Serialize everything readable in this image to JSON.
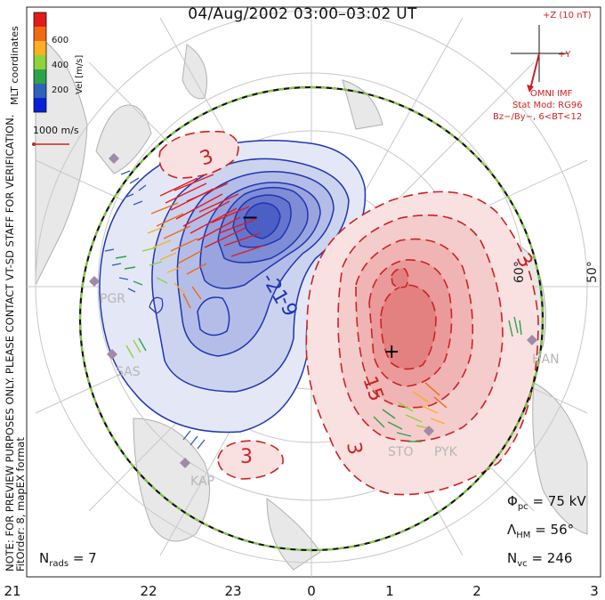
{
  "title": "04/Aug/2002 03:00–03:02 UT",
  "legend": {
    "coords": "MLT coordinates",
    "vel_label": "Vel [m/s]",
    "ticks": [
      "600",
      "400",
      "200"
    ],
    "colors": [
      "#e31a1c",
      "#f16913",
      "#fdae26",
      "#8dd33c",
      "#2ba34a",
      "#2f62b9",
      "#0b1fd6"
    ],
    "ref_vector": "1000 m/s"
  },
  "imf": {
    "z_label": "+Z (10 nT)",
    "y_label": "+Y",
    "source": "OMNI IMF",
    "stat_mod": "Stat Mod: RG96",
    "bin": "Bz−/By−, 6<BT<12"
  },
  "notice": {
    "line1": "NOTE: FOR PREVIEW PURPOSES ONLY. PLEASE CONTACT VT-SD STAFF FOR VERIFICATION.",
    "line2": "FitOrder: 8, mapEX format"
  },
  "stats": {
    "phi_symbol": "Φ",
    "phi_sub": "pc",
    "phi_value": "= 75 kV",
    "lambda_symbol": "Λ",
    "lambda_sub": "HM",
    "lambda_value": "= 56°",
    "nvc_symbol": "N",
    "nvc_sub": "vc",
    "nvc_value": "= 246",
    "nrads_symbol": "N",
    "nrads_sub": "rads",
    "nrads_value": "= 7"
  },
  "lat_labels": {
    "inner": "60°",
    "outer": "50°"
  },
  "mlt_ticks": [
    "21",
    "22",
    "23",
    "0",
    "1",
    "2",
    "3"
  ],
  "contour_labels": {
    "neg": [
      "-21",
      "-9"
    ],
    "pos": [
      "3",
      "3",
      "3",
      "15",
      "3"
    ]
  },
  "markers": {
    "min": "−",
    "max": "+"
  },
  "stations": [
    "PGR",
    "SAS",
    "KAP",
    "STO",
    "PYK",
    "HAN"
  ],
  "colors": {
    "negative": "#1f35b0",
    "positive": "#cc2222",
    "boundary": "#7ec93c"
  }
}
